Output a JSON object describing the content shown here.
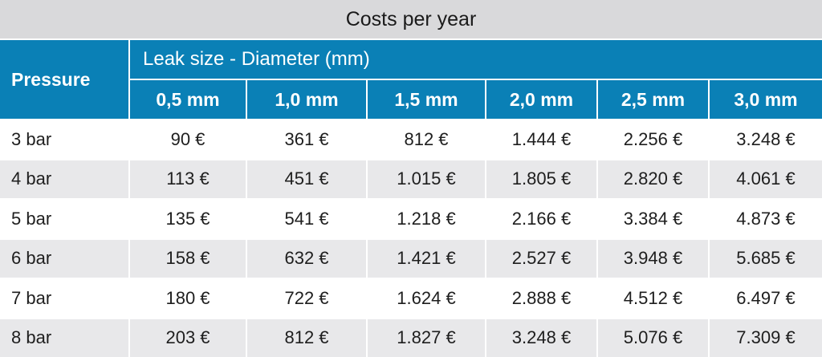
{
  "title": "Costs per year",
  "header": {
    "row_label": "Pressure",
    "group_label": "Leak size - Diameter (mm)",
    "columns": [
      "0,5 mm",
      "1,0 mm",
      "1,5 mm",
      "2,0 mm",
      "2,5 mm",
      "3,0 mm"
    ]
  },
  "colors": {
    "header_blue": "#0a80b6",
    "title_gray": "#d9d9db",
    "row_alt": "#e8e8ea"
  },
  "rows": [
    {
      "pressure": "3 bar",
      "values": [
        "90 €",
        "361 €",
        "812 €",
        "1.444 €",
        "2.256 €",
        "3.248 €"
      ]
    },
    {
      "pressure": "4 bar",
      "values": [
        "113 €",
        "451 €",
        "1.015 €",
        "1.805 €",
        "2.820 €",
        "4.061 €"
      ]
    },
    {
      "pressure": "5 bar",
      "values": [
        "135 €",
        "541 €",
        "1.218 €",
        "2.166 €",
        "3.384 €",
        "4.873 €"
      ]
    },
    {
      "pressure": "6 bar",
      "values": [
        "158 €",
        "632 €",
        "1.421 €",
        "2.527 €",
        "3.948 €",
        "5.685 €"
      ]
    },
    {
      "pressure": "7 bar",
      "values": [
        "180 €",
        "722 €",
        "1.624 €",
        "2.888 €",
        "4.512 €",
        "6.497 €"
      ]
    },
    {
      "pressure": "8 bar",
      "values": [
        "203 €",
        "812 €",
        "1.827 €",
        "3.248 €",
        "5.076 €",
        "7.309 €"
      ]
    }
  ]
}
